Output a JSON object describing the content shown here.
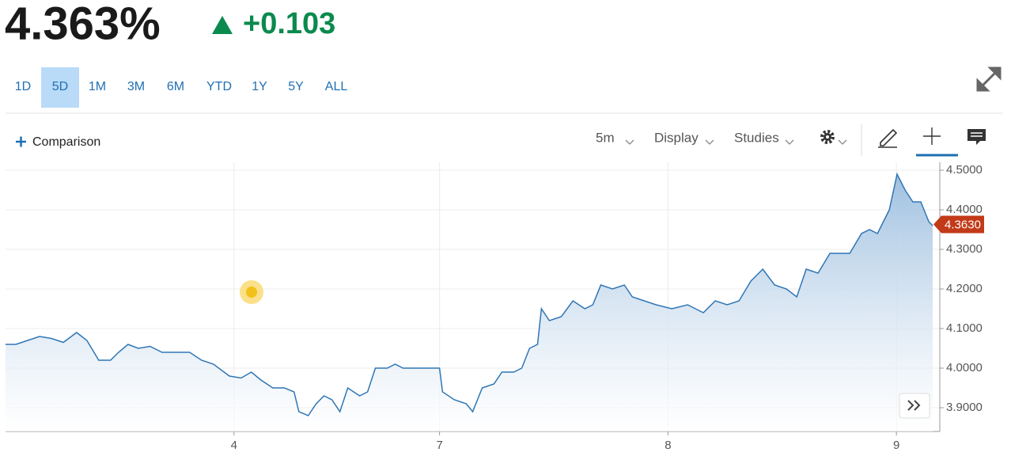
{
  "header": {
    "price": "4.363%",
    "change": "+0.103"
  },
  "ranges": [
    "1D",
    "5D",
    "1M",
    "3M",
    "6M",
    "YTD",
    "1Y",
    "5Y",
    "ALL"
  ],
  "selected_range": "5D",
  "toolbar": {
    "comparison": "Comparison",
    "interval": "5m",
    "display": "Display",
    "studies": "Studies"
  },
  "chart_data": {
    "type": "line",
    "color": "#2f76b5",
    "grid": true,
    "x": [
      0,
      0.045,
      0.097,
      0.149,
      0.201,
      0.253,
      0.311,
      0.356,
      0.408,
      0.46,
      0.495,
      0.536,
      0.581,
      0.633,
      0.685,
      0.737,
      0.806,
      0.858,
      0.91,
      0.98,
      1.031,
      1.076,
      1.118,
      1.17,
      1.221,
      1.263,
      1.284,
      1.325,
      1.36,
      1.394,
      1.429,
      1.464,
      1.498,
      1.55,
      1.585,
      1.619,
      1.671,
      1.706,
      1.74,
      1.81,
      1.9,
      1.913,
      1.965,
      2.017,
      2.045,
      2.087,
      2.138,
      2.173,
      2.225,
      2.26,
      2.294,
      2.329,
      2.346,
      2.381,
      2.433,
      2.484,
      2.536,
      2.571,
      2.606,
      2.657,
      2.709,
      2.744,
      2.796,
      2.848,
      2.917,
      2.986,
      3.055,
      3.107,
      3.159,
      3.211,
      3.263,
      3.315,
      3.367,
      3.419,
      3.464,
      3.505,
      3.557,
      3.609,
      3.696,
      3.747,
      3.782,
      3.817,
      3.869,
      3.903,
      3.938,
      3.972,
      4.007,
      4.042,
      4.059
    ],
    "values": [
      4.06,
      4.06,
      4.07,
      4.08,
      4.075,
      4.065,
      4.09,
      4.07,
      4.02,
      4.02,
      4.04,
      4.06,
      4.05,
      4.055,
      4.04,
      4.04,
      4.04,
      4.02,
      4.01,
      3.98,
      3.975,
      3.99,
      3.97,
      3.95,
      3.95,
      3.94,
      3.89,
      3.88,
      3.91,
      3.93,
      3.92,
      3.89,
      3.95,
      3.93,
      3.94,
      4.0,
      4.0,
      4.01,
      4.0,
      4.0,
      4.0,
      3.94,
      3.92,
      3.91,
      3.89,
      3.95,
      3.96,
      3.99,
      3.99,
      4.0,
      4.05,
      4.06,
      4.15,
      4.12,
      4.13,
      4.17,
      4.15,
      4.16,
      4.21,
      4.2,
      4.21,
      4.18,
      4.17,
      4.16,
      4.15,
      4.16,
      4.14,
      4.17,
      4.16,
      4.17,
      4.22,
      4.25,
      4.21,
      4.2,
      4.18,
      4.25,
      4.24,
      4.29,
      4.29,
      4.34,
      4.35,
      4.34,
      4.4,
      4.49,
      4.45,
      4.42,
      4.42,
      4.37,
      4.36
    ],
    "xlim": [
      0,
      4.09
    ],
    "xticks": [
      {
        "value": 1.0,
        "label": "4"
      },
      {
        "value": 1.9,
        "label": "7"
      },
      {
        "value": 2.9,
        "label": "8"
      },
      {
        "value": 3.9,
        "label": "9"
      }
    ],
    "ylim": [
      3.84,
      4.52
    ],
    "yticks": [
      {
        "value": 3.9,
        "label": "3.9000"
      },
      {
        "value": 4.0,
        "label": "4.0000"
      },
      {
        "value": 4.1,
        "label": "4.1000"
      },
      {
        "value": 4.2,
        "label": "4.2000"
      },
      {
        "value": 4.3,
        "label": "4.3000"
      },
      {
        "value": 4.4,
        "label": "4.4000"
      },
      {
        "value": 4.5,
        "label": "4.5000"
      }
    ],
    "last_value": 4.363,
    "last_value_label": "4.3630"
  }
}
